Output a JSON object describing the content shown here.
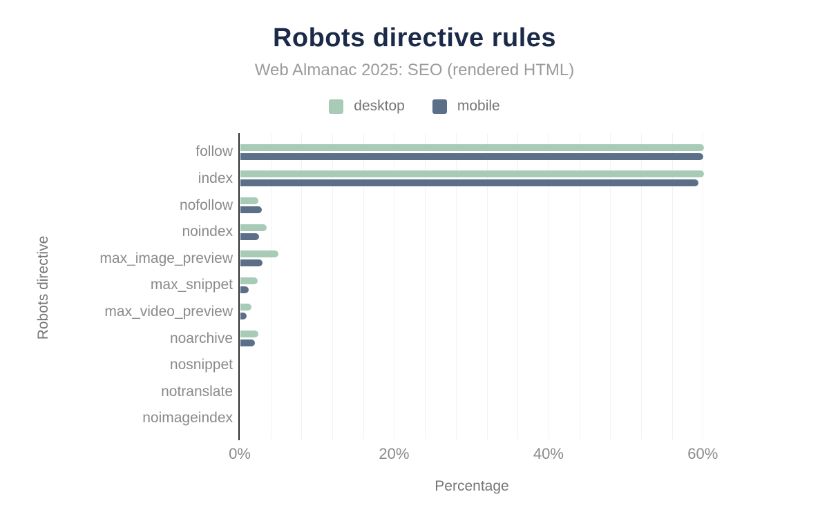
{
  "header": {
    "title": "Robots directive rules",
    "subtitle": "Web Almanac 2025: SEO (rendered HTML)"
  },
  "chart_data": {
    "type": "bar",
    "orientation": "horizontal",
    "title": "Robots directive rules",
    "subtitle": "Web Almanac 2025: SEO (rendered HTML)",
    "xlabel": "Percentage",
    "ylabel": "Robots directive",
    "categories": [
      "follow",
      "index",
      "nofollow",
      "noindex",
      "max_image_preview",
      "max_snippet",
      "max_video_preview",
      "noarchive",
      "nosnippet",
      "notranslate",
      "noimageindex"
    ],
    "series": [
      {
        "name": "desktop",
        "color": "#a8cbb8",
        "values": [
          60.1,
          60.1,
          2.3,
          3.4,
          4.9,
          2.2,
          1.4,
          2.3,
          0,
          0,
          0
        ]
      },
      {
        "name": "mobile",
        "color": "#5c6f88",
        "values": [
          60.0,
          59.3,
          2.8,
          2.4,
          2.9,
          1.1,
          0.8,
          1.9,
          0,
          0,
          0
        ]
      }
    ],
    "xlim": [
      0,
      60.15
    ],
    "xticks": [
      {
        "value": 0,
        "label": "0%"
      },
      {
        "value": 20,
        "label": "20%"
      },
      {
        "value": 40,
        "label": "40%"
      },
      {
        "value": 60,
        "label": "60%"
      }
    ],
    "gridline_step": 4,
    "grid": "vertical",
    "legend_position": "top"
  },
  "colors": {
    "title": "#1b2a49",
    "subtitle": "#9b9b9b",
    "desktop": "#a8cbb8",
    "mobile": "#5c6f88",
    "axis_line": "#2d2d2d",
    "gridline": "#f2f2f2",
    "tick_label": "#8a8a8a",
    "axis_title": "#757575"
  }
}
